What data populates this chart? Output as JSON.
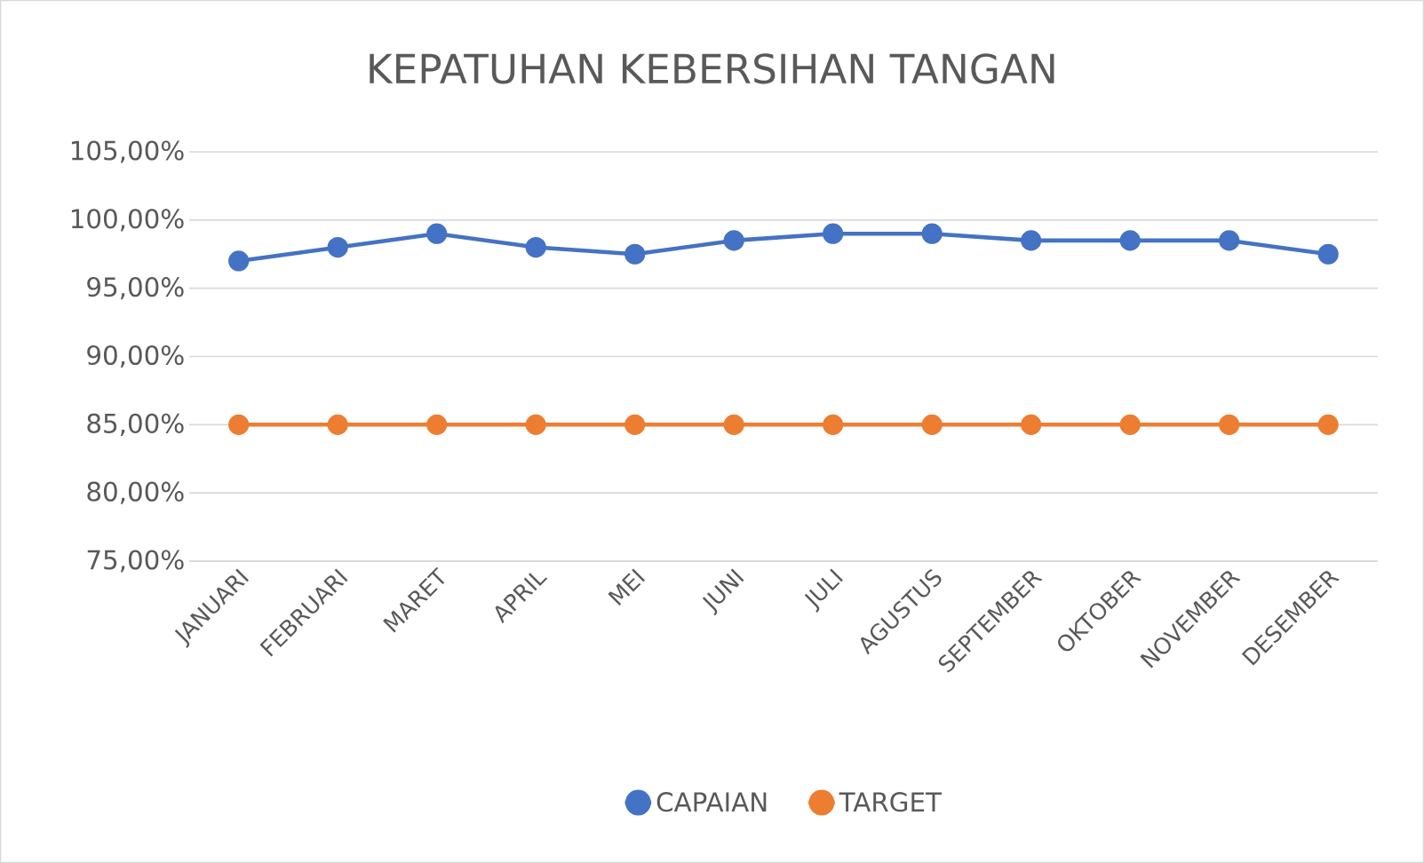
{
  "chart_data": {
    "type": "line",
    "title": "KEPATUHAN KEBERSIHAN TANGAN",
    "categories": [
      "JANUARI",
      "FEBRUARI",
      "MARET",
      "APRIL",
      "MEI",
      "JUNI",
      "JULI",
      "AGUSTUS",
      "SEPTEMBER",
      "OKTOBER",
      "NOVEMBER",
      "DESEMBER"
    ],
    "series": [
      {
        "name": "CAPAIAN",
        "color": "#4472c4",
        "values": [
          97,
          98,
          99,
          98,
          97.5,
          98.5,
          99,
          99,
          98.5,
          98.5,
          98.5,
          97.5
        ]
      },
      {
        "name": "TARGET",
        "color": "#ed7d31",
        "values": [
          85,
          85,
          85,
          85,
          85,
          85,
          85,
          85,
          85,
          85,
          85,
          85
        ]
      }
    ],
    "ylim": [
      75,
      105
    ],
    "yticks": [
      {
        "value": 75,
        "label": "75,00%"
      },
      {
        "value": 80,
        "label": "80,00%"
      },
      {
        "value": 85,
        "label": "85,00%"
      },
      {
        "value": 90,
        "label": "90,00%"
      },
      {
        "value": 95,
        "label": "95,00%"
      },
      {
        "value": 100,
        "label": "100,00%"
      },
      {
        "value": 105,
        "label": "105,00%"
      }
    ],
    "grid": "y",
    "legend": "bottom",
    "marker": "circle",
    "line_style": "solid"
  }
}
